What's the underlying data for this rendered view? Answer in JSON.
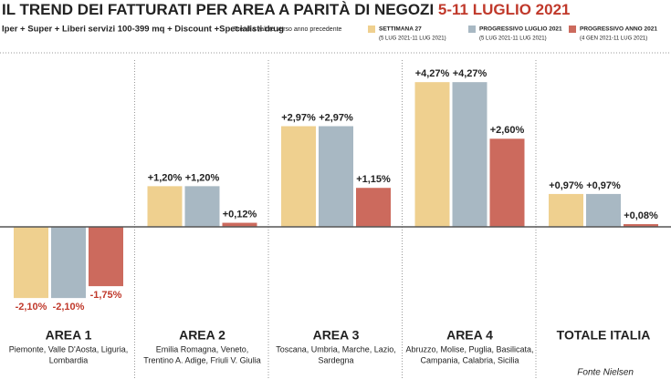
{
  "chart_data": {
    "type": "bar",
    "title": "IL TREND DEI FATTURATI PER AREA A PARITÀ DI NEGOZI",
    "title_highlight": "5-11 LUGLIO 2021",
    "subtitle": "Iper + Super + Liberi servizi 100-399 mq + Discount +Specialisti drug",
    "note": "Trend a valore verso anno precedente",
    "source": "Fonte Nielsen",
    "categories": [
      "AREA 1",
      "AREA 2",
      "AREA 3",
      "AREA 4",
      "TOTALE ITALIA"
    ],
    "category_details": [
      [
        "Piemonte, Valle D'Aosta, Liguria,",
        "Lombardia"
      ],
      [
        "Emilia Romagna, Veneto,",
        "Trentino A. Adige, Friuli V. Giulia"
      ],
      [
        "Toscana, Umbria, Marche, Lazio,",
        "Sardegna"
      ],
      [
        "Abruzzo, Molise, Puglia, Basilicata,",
        "Campania, Calabria, Sicilia"
      ],
      []
    ],
    "series": [
      {
        "name": "SETTIMANA 27",
        "period": "(5 LUG 2021-11 LUG 2021)",
        "color": "#efd08f",
        "values": [
          -2.1,
          1.2,
          2.97,
          4.27,
          0.97
        ],
        "value_labels": [
          "-2,10%",
          "+1,20%",
          "+2,97%",
          "+4,27%",
          "+0,97%"
        ]
      },
      {
        "name": "PROGRESSIVO LUGLIO 2021",
        "period": "(5 LUG 2021-11 LUG 2021)",
        "color": "#a8b8c3",
        "values": [
          -2.1,
          1.2,
          2.97,
          4.27,
          0.97
        ],
        "value_labels": [
          "-2,10%",
          "+1,20%",
          "+2,97%",
          "+4,27%",
          "+0,97%"
        ]
      },
      {
        "name": "PROGRESSIVO ANNO 2021",
        "period": "(4 GEN 2021-11 LUG 2021)",
        "color": "#cc6a5d",
        "values": [
          -1.75,
          0.12,
          1.15,
          2.6,
          0.08
        ],
        "value_labels": [
          "-1,75%",
          "+0,12%",
          "+1,15%",
          "+2,60%",
          "+0,08%"
        ]
      }
    ]
  }
}
